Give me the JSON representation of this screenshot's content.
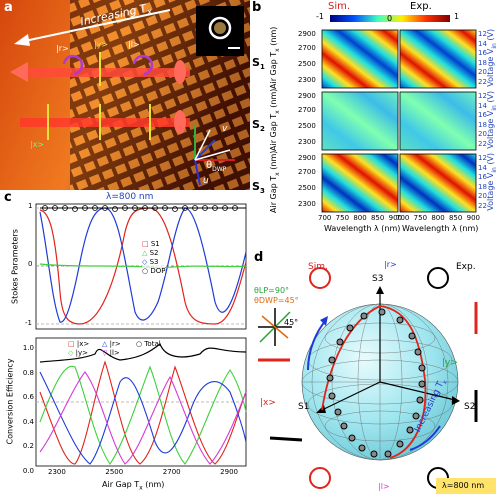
{
  "panels": {
    "a": {
      "label": "a",
      "arrow_text": "Increasing T",
      "arrow_sub": "x",
      "states": [
        "|r>",
        "|l>",
        "|y>",
        "|x>"
      ],
      "axis_v": "v",
      "axis_u": "u",
      "theta": "θ",
      "theta_sub": "DWP"
    },
    "b": {
      "label": "b",
      "sim_label": "Sim.",
      "exp_label": "Exp.",
      "colorbar_ticks": [
        "-1",
        "0",
        "1"
      ],
      "rows": [
        "S1",
        "S2",
        "S3"
      ],
      "row_main": "S",
      "row_subs": [
        "1",
        "2",
        "3"
      ],
      "ylabel": "Air Gap T",
      "ylabel_sub": "x",
      "ylabel_unit": " (nm)",
      "yticks": [
        "2900",
        "2700",
        "2500",
        "2300"
      ],
      "right_label": "Voltage V",
      "right_sub": "in",
      "right_unit": " (V)",
      "right_ticks": [
        "12",
        "14",
        "16",
        "18",
        "20",
        "22"
      ],
      "xlabel": "Wavelength λ (nm)",
      "xticks": [
        "700",
        "750",
        "800",
        "850",
        "900"
      ]
    },
    "c": {
      "label": "c",
      "title": "λ=800 nm",
      "top_ylabel": "Stokes Parameters",
      "top_yticks": [
        "1",
        "0",
        "-1"
      ],
      "top_legend": [
        "S1",
        "S2",
        "S3",
        "DOP"
      ],
      "bot_ylabel": "Conversion Efficiency",
      "bot_yticks": [
        "1.0",
        "0.8",
        "0.6",
        "0.4",
        "0.2",
        "0.0"
      ],
      "bot_legend": [
        "|x>",
        "|r>",
        "Total",
        "|y>",
        "|l>"
      ],
      "xlabel": "Air Gap T",
      "xlabel_sub": "x",
      "xlabel_unit": " (nm)",
      "xticks": [
        "2300",
        "2500",
        "2700",
        "2900"
      ]
    },
    "d": {
      "label": "d",
      "sim_label": "Sim.",
      "exp_label": "Exp.",
      "theta_lp": "θLP=90°",
      "theta_dwp": "θDWP=45°",
      "angle": "45°",
      "s1": "S1",
      "s2": "S2",
      "s3": "S3",
      "state_r": "|r>",
      "state_l": "|l>",
      "state_x": "|x>",
      "state_y": "|y>",
      "increasing": "Increasing T",
      "increasing_sub": "x",
      "wavelength": "λ=800 nm",
      "axis_x": "x",
      "axis_y": "y"
    }
  },
  "colors": {
    "s1": "#e0241c",
    "s2": "#3fd13a",
    "s3": "#1f3bd6",
    "dop": "#000000",
    "l": "#d63ad6",
    "title_blue": "#2244bb",
    "sim_red": "#d42020",
    "theta_green": "#27a33a",
    "theta_orange": "#e06a10",
    "sphere": "#9fe6ef",
    "band": "#ffe36a"
  }
}
